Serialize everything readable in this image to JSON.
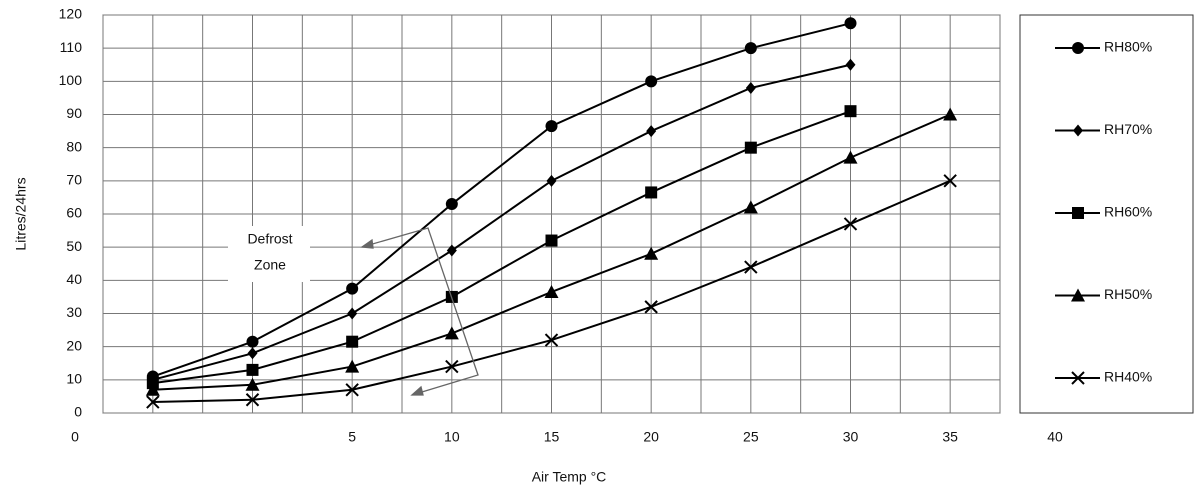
{
  "chart_data": {
    "type": "line",
    "x_label": "Air Temp °C",
    "y_label": "Litres/24hrs",
    "x_axis_end_labels": [
      "0",
      "40"
    ],
    "x": [
      -5,
      0,
      5,
      10,
      15,
      20,
      25,
      30,
      35
    ],
    "series": [
      {
        "name": "RH80%",
        "color": "#000000",
        "marker": "circle",
        "values": [
          11,
          21.5,
          37.5,
          63,
          86.5,
          100,
          110,
          117.5,
          null
        ]
      },
      {
        "name": "RH70%",
        "color": "#000000",
        "marker": "diamond",
        "values": [
          10,
          18,
          30,
          49,
          70,
          85,
          98,
          105,
          null
        ]
      },
      {
        "name": "RH60%",
        "color": "#000000",
        "marker": "square",
        "values": [
          9,
          13,
          21.5,
          35,
          52,
          66.5,
          80,
          91,
          null
        ]
      },
      {
        "name": "RH50%",
        "color": "#000000",
        "marker": "triangle",
        "values": [
          7,
          8.5,
          14,
          24,
          36.5,
          48,
          62,
          77,
          90
        ]
      },
      {
        "name": "RH40%",
        "color": "#000000",
        "marker": "x",
        "values": [
          3.3,
          4,
          7,
          14,
          22,
          32,
          44,
          57,
          70
        ]
      }
    ],
    "annotation": [
      "Defrost",
      "Zone"
    ],
    "xlim": [
      -7.5,
      37.5
    ],
    "xticks": [
      5,
      10,
      15,
      20,
      25,
      30,
      35
    ],
    "xgrid": [
      -7.5,
      -5,
      -2.5,
      0,
      2.5,
      5,
      7.5,
      10,
      12.5,
      15,
      17.5,
      20,
      22.5,
      25,
      27.5,
      30,
      32.5,
      35,
      37.5
    ],
    "ylim": [
      0,
      120
    ],
    "yticks": [
      0,
      10,
      20,
      30,
      40,
      50,
      60,
      70,
      80,
      90,
      100,
      110,
      120
    ],
    "grid": true,
    "legend": "right"
  }
}
